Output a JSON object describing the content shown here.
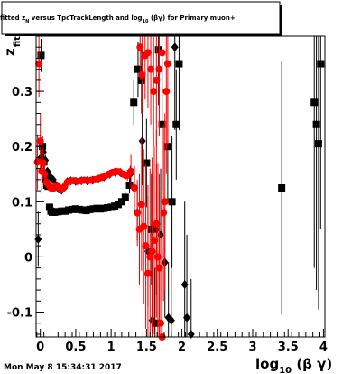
{
  "chart_data": {
    "type": "scatter",
    "title": "fitted  z_N  versus TpcTrackLength and log10(βγ) for Primary muon+",
    "title_parts": {
      "prefix": "fitted  ",
      "z": "z",
      "z_sub": "N",
      "middle": " versus TpcTrackLength and log",
      "log_sub": "10",
      "suffix": " (βγ) for Primary muon+"
    },
    "ylabel": {
      "main": "z",
      "sub": "fit"
    },
    "xlabel": {
      "prefix": "log",
      "sub": "10",
      "suffix": " (β γ)"
    },
    "footer": "Mon May  8 15:34:31 2017",
    "xlim": [
      -0.06,
      4.02
    ],
    "ylim": [
      -0.145,
      0.4
    ],
    "x_ticks": [
      {
        "value": 0,
        "label": "0"
      },
      {
        "value": 0.5,
        "label": "0.5"
      },
      {
        "value": 1,
        "label": "1"
      },
      {
        "value": 1.5,
        "label": "1.5"
      },
      {
        "value": 2,
        "label": "2"
      },
      {
        "value": 2.5,
        "label": "2.5"
      },
      {
        "value": 3,
        "label": "3"
      },
      {
        "value": 3.5,
        "label": "3.5"
      },
      {
        "value": 4,
        "label": "4"
      }
    ],
    "y_ticks": [
      {
        "value": -0.1,
        "label": "-0.1"
      },
      {
        "value": 0,
        "label": "0"
      },
      {
        "value": 0.1,
        "label": "0.1"
      },
      {
        "value": 0.2,
        "label": "0.2"
      },
      {
        "value": 0.3,
        "label": "0.3"
      }
    ],
    "colors": {
      "black_series": "#000000",
      "red_series": "#ff0000",
      "frame": "#000000"
    },
    "series": [
      {
        "marker": "square",
        "color": "#000000",
        "points": [
          {
            "x": 0.01,
            "y": 0.365,
            "e": 0.03
          },
          {
            "x": 0.03,
            "y": 0.2,
            "e": 0.02
          },
          {
            "x": 0.05,
            "y": 0.172,
            "e": 0.015
          },
          {
            "x": 0.07,
            "y": 0.14,
            "e": 0.01
          },
          {
            "x": 0.09,
            "y": 0.13,
            "e": 0.008
          },
          {
            "x": 0.11,
            "y": 0.128,
            "e": 0.006
          },
          {
            "x": 0.13,
            "y": 0.09,
            "e": 0.005
          },
          {
            "x": 0.15,
            "y": 0.083,
            "e": 0.004
          },
          {
            "x": 0.17,
            "y": 0.081,
            "e": 0.003
          },
          {
            "x": 0.2,
            "y": 0.081,
            "e": 0.003
          },
          {
            "x": 0.25,
            "y": 0.082,
            "e": 0.003
          },
          {
            "x": 0.3,
            "y": 0.083,
            "e": 0.003
          },
          {
            "x": 0.35,
            "y": 0.083,
            "e": 0.003
          },
          {
            "x": 0.4,
            "y": 0.085,
            "e": 0.003
          },
          {
            "x": 0.45,
            "y": 0.086,
            "e": 0.003
          },
          {
            "x": 0.5,
            "y": 0.087,
            "e": 0.003
          },
          {
            "x": 0.55,
            "y": 0.086,
            "e": 0.003
          },
          {
            "x": 0.6,
            "y": 0.085,
            "e": 0.003
          },
          {
            "x": 0.65,
            "y": 0.084,
            "e": 0.003
          },
          {
            "x": 0.7,
            "y": 0.086,
            "e": 0.003
          },
          {
            "x": 0.75,
            "y": 0.087,
            "e": 0.003
          },
          {
            "x": 0.8,
            "y": 0.088,
            "e": 0.003
          },
          {
            "x": 0.85,
            "y": 0.087,
            "e": 0.003
          },
          {
            "x": 0.9,
            "y": 0.088,
            "e": 0.003
          },
          {
            "x": 0.95,
            "y": 0.089,
            "e": 0.003
          },
          {
            "x": 1.0,
            "y": 0.09,
            "e": 0.003
          },
          {
            "x": 1.05,
            "y": 0.092,
            "e": 0.004
          },
          {
            "x": 1.1,
            "y": 0.095,
            "e": 0.004
          },
          {
            "x": 1.15,
            "y": 0.1,
            "e": 0.005
          },
          {
            "x": 1.2,
            "y": 0.108,
            "e": 0.008
          },
          {
            "x": 1.26,
            "y": 0.13,
            "e": 0.015
          },
          {
            "x": 1.32,
            "y": 0.28,
            "e": 0.04
          },
          {
            "x": 1.38,
            "y": 0.34,
            "e": 0.05
          },
          {
            "x": 1.43,
            "y": 0.32,
            "e": 0.06
          },
          {
            "x": 1.5,
            "y": 0.17,
            "e": 0.08
          },
          {
            "x": 1.57,
            "y": 0.05,
            "e": 0.1
          },
          {
            "x": 1.62,
            "y": -0.12,
            "e": 0.1
          },
          {
            "x": 1.67,
            "y": 0.375,
            "e": 0.1
          },
          {
            "x": 1.72,
            "y": 0.24,
            "e": 0.12
          },
          {
            "x": 1.8,
            "y": 0.2,
            "e": 0.1
          },
          {
            "x": 1.86,
            "y": 0.1,
            "e": 0.12
          },
          {
            "x": 1.92,
            "y": 0.24,
            "e": 0.1
          },
          {
            "x": 1.96,
            "y": 0.35,
            "e": 0.12
          },
          {
            "x": 3.41,
            "y": 0.125,
            "e": 0.23
          },
          {
            "x": 3.87,
            "y": 0.28,
            "e": 0.3
          },
          {
            "x": 3.9,
            "y": 0.24,
            "e": 0.3
          },
          {
            "x": 3.93,
            "y": 0.205,
            "e": 0.3
          },
          {
            "x": 3.96,
            "y": 0.35,
            "e": 0.3
          }
        ]
      },
      {
        "marker": "diamond",
        "color": "#000000",
        "points": [
          {
            "x": -0.03,
            "y": 0.032,
            "e": 0.05
          },
          {
            "x": 0.01,
            "y": 0.18,
            "e": 0.02
          },
          {
            "x": 0.04,
            "y": 0.19,
            "e": 0.015
          },
          {
            "x": 0.07,
            "y": 0.175,
            "e": 0.01
          },
          {
            "x": 0.1,
            "y": 0.155,
            "e": 0.006
          },
          {
            "x": 0.14,
            "y": 0.145,
            "e": 0.004
          },
          {
            "x": 0.18,
            "y": 0.14,
            "e": 0.003
          },
          {
            "x": 0.22,
            "y": 0.13,
            "e": 0.003
          },
          {
            "x": 0.26,
            "y": 0.123,
            "e": 0.003
          },
          {
            "x": 0.3,
            "y": 0.121,
            "e": 0.003
          },
          {
            "x": 0.34,
            "y": 0.126,
            "e": 0.003
          },
          {
            "x": 0.38,
            "y": 0.136,
            "e": 0.003
          },
          {
            "x": 0.43,
            "y": 0.138,
            "e": 0.003
          },
          {
            "x": 0.5,
            "y": 0.137,
            "e": 0.003
          },
          {
            "x": 0.58,
            "y": 0.138,
            "e": 0.003
          },
          {
            "x": 0.66,
            "y": 0.138,
            "e": 0.003
          },
          {
            "x": 0.74,
            "y": 0.139,
            "e": 0.003
          },
          {
            "x": 0.82,
            "y": 0.141,
            "e": 0.003
          },
          {
            "x": 0.9,
            "y": 0.145,
            "e": 0.003
          },
          {
            "x": 0.98,
            "y": 0.15,
            "e": 0.003
          },
          {
            "x": 1.06,
            "y": 0.153,
            "e": 0.004
          },
          {
            "x": 1.13,
            "y": 0.153,
            "e": 0.005
          },
          {
            "x": 1.2,
            "y": 0.148,
            "e": 0.007
          },
          {
            "x": 1.27,
            "y": 0.15,
            "e": 0.015
          },
          {
            "x": 1.37,
            "y": 0.08,
            "e": 0.05
          },
          {
            "x": 1.44,
            "y": 0.21,
            "e": 0.08
          },
          {
            "x": 1.52,
            "y": 0.01,
            "e": 0.1
          },
          {
            "x": 1.58,
            "y": -0.115,
            "e": 0.1
          },
          {
            "x": 1.64,
            "y": 0.05,
            "e": 0.12
          },
          {
            "x": 1.7,
            "y": 0.04,
            "e": 0.12
          },
          {
            "x": 1.76,
            "y": -0.01,
            "e": 0.1
          },
          {
            "x": 1.81,
            "y": -0.11,
            "e": 0.1
          },
          {
            "x": 1.85,
            "y": -0.115,
            "e": 0.1
          },
          {
            "x": 1.9,
            "y": 0.38,
            "e": 0.15
          },
          {
            "x": 2.04,
            "y": -0.05,
            "e": 0.15
          },
          {
            "x": 2.07,
            "y": -0.11,
            "e": 0.15
          },
          {
            "x": 2.13,
            "y": -0.14,
            "e": 0.1
          }
        ]
      },
      {
        "marker": "circle",
        "color": "#ff0000",
        "points": [
          {
            "x": -0.04,
            "y": 0.172,
            "e": 0.05
          },
          {
            "x": -0.02,
            "y": 0.35,
            "e": 0.06
          },
          {
            "x": 0.0,
            "y": 0.21,
            "e": 0.05
          },
          {
            "x": 0.02,
            "y": 0.155,
            "e": 0.04
          },
          {
            "x": 0.04,
            "y": 0.17,
            "e": 0.03
          },
          {
            "x": 0.06,
            "y": 0.15,
            "e": 0.02
          },
          {
            "x": 0.09,
            "y": 0.135,
            "e": 0.01
          },
          {
            "x": 0.12,
            "y": 0.13,
            "e": 0.006
          },
          {
            "x": 0.15,
            "y": 0.125,
            "e": 0.004
          },
          {
            "x": 0.18,
            "y": 0.124,
            "e": 0.003
          },
          {
            "x": 0.21,
            "y": 0.127,
            "e": 0.003
          },
          {
            "x": 0.24,
            "y": 0.128,
            "e": 0.003
          },
          {
            "x": 0.27,
            "y": 0.125,
            "e": 0.003
          },
          {
            "x": 0.3,
            "y": 0.122,
            "e": 0.003
          },
          {
            "x": 0.34,
            "y": 0.127,
            "e": 0.003
          },
          {
            "x": 0.38,
            "y": 0.135,
            "e": 0.003
          },
          {
            "x": 0.42,
            "y": 0.138,
            "e": 0.003
          },
          {
            "x": 0.47,
            "y": 0.138,
            "e": 0.003
          },
          {
            "x": 0.52,
            "y": 0.137,
            "e": 0.003
          },
          {
            "x": 0.57,
            "y": 0.138,
            "e": 0.003
          },
          {
            "x": 0.62,
            "y": 0.139,
            "e": 0.003
          },
          {
            "x": 0.67,
            "y": 0.138,
            "e": 0.003
          },
          {
            "x": 0.72,
            "y": 0.139,
            "e": 0.003
          },
          {
            "x": 0.77,
            "y": 0.14,
            "e": 0.003
          },
          {
            "x": 0.82,
            "y": 0.142,
            "e": 0.003
          },
          {
            "x": 0.87,
            "y": 0.144,
            "e": 0.003
          },
          {
            "x": 0.92,
            "y": 0.147,
            "e": 0.003
          },
          {
            "x": 0.97,
            "y": 0.15,
            "e": 0.003
          },
          {
            "x": 1.02,
            "y": 0.153,
            "e": 0.004
          },
          {
            "x": 1.07,
            "y": 0.155,
            "e": 0.004
          },
          {
            "x": 1.12,
            "y": 0.154,
            "e": 0.005
          },
          {
            "x": 1.17,
            "y": 0.15,
            "e": 0.006
          },
          {
            "x": 1.23,
            "y": 0.148,
            "e": 0.01
          },
          {
            "x": 1.28,
            "y": 0.155,
            "e": 0.03
          },
          {
            "x": 1.33,
            "y": 0.125,
            "e": 0.04
          },
          {
            "x": 1.37,
            "y": 0.08,
            "e": 0.06
          },
          {
            "x": 1.4,
            "y": 0.05,
            "e": 0.1
          },
          {
            "x": 1.43,
            "y": 0.095,
            "e": 0.12
          },
          {
            "x": 1.46,
            "y": 0.055,
            "e": 0.14
          },
          {
            "x": 1.49,
            "y": 0.02,
            "e": 0.15
          },
          {
            "x": 1.52,
            "y": -0.03,
            "e": 0.16
          },
          {
            "x": 1.55,
            "y": 0.0,
            "e": 0.16
          },
          {
            "x": 1.58,
            "y": 0.01,
            "e": 0.17
          },
          {
            "x": 1.61,
            "y": 0.03,
            "e": 0.17
          },
          {
            "x": 1.64,
            "y": 0.06,
            "e": 0.17
          },
          {
            "x": 1.66,
            "y": 0.0,
            "e": 0.17
          },
          {
            "x": 1.68,
            "y": -0.02,
            "e": 0.17
          },
          {
            "x": 1.7,
            "y": -0.12,
            "e": 0.16
          },
          {
            "x": 1.72,
            "y": -0.145,
            "e": 0.16
          },
          {
            "x": 1.74,
            "y": 0.08,
            "e": 0.16
          },
          {
            "x": 1.76,
            "y": 0.1,
            "e": 0.16
          },
          {
            "x": 1.78,
            "y": 0.3,
            "e": 0.15
          },
          {
            "x": 1.8,
            "y": 0.35,
            "e": 0.15
          },
          {
            "x": 1.72,
            "y": 0.37,
            "e": 0.12
          },
          {
            "x": 1.68,
            "y": 0.34,
            "e": 0.12
          },
          {
            "x": 1.64,
            "y": 0.32,
            "e": 0.12
          },
          {
            "x": 1.6,
            "y": 0.3,
            "e": 0.1
          },
          {
            "x": 1.56,
            "y": 0.34,
            "e": 0.1
          },
          {
            "x": 1.52,
            "y": 0.37,
            "e": 0.1
          },
          {
            "x": 1.48,
            "y": 0.365,
            "e": 0.08
          },
          {
            "x": 1.44,
            "y": 0.33,
            "e": 0.07
          },
          {
            "x": 1.41,
            "y": 0.38,
            "e": 0.06
          }
        ]
      }
    ]
  }
}
